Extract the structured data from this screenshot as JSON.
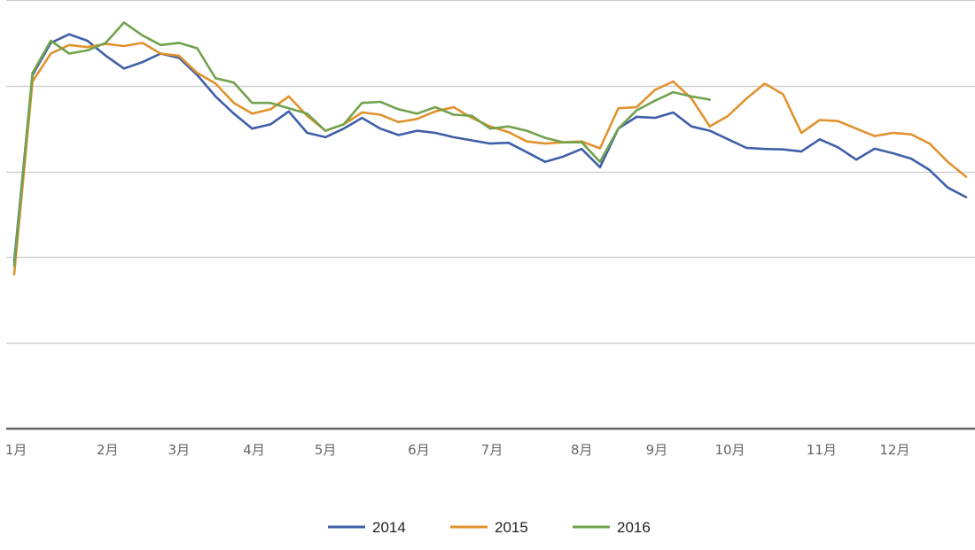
{
  "chart_data": {
    "type": "line",
    "title": "",
    "xlabel": "",
    "ylabel": "",
    "grid": true,
    "legend_position": "bottom",
    "x_ticks": [
      {
        "label": "1月",
        "x": 0.1
      },
      {
        "label": "2月",
        "x": 5.1
      },
      {
        "label": "3月",
        "x": 9.0
      },
      {
        "label": "4月",
        "x": 13.1
      },
      {
        "label": "5月",
        "x": 17.0
      },
      {
        "label": "6月",
        "x": 22.1
      },
      {
        "label": "7月",
        "x": 26.1
      },
      {
        "label": "8月",
        "x": 31.0
      },
      {
        "label": "9月",
        "x": 35.1
      },
      {
        "label": "10月",
        "x": 39.1
      },
      {
        "label": "11月",
        "x": 44.1
      },
      {
        "label": "12月",
        "x": 48.1
      }
    ],
    "x_range": [
      0,
      52
    ],
    "y_range": [
      0,
      200
    ],
    "gridline_values": [
      40,
      80,
      120,
      160,
      200
    ],
    "series": [
      {
        "name": "2014",
        "color": "#3f5fa8",
        "x": [
          0,
          1,
          2,
          3,
          4,
          5,
          6,
          7,
          8,
          9,
          10,
          11,
          12,
          13,
          14,
          15,
          16,
          17,
          18,
          19,
          20,
          21,
          22,
          23,
          24,
          25,
          26,
          27,
          28,
          29,
          30,
          31,
          32,
          33,
          34,
          35,
          36,
          37,
          38,
          39,
          40,
          41,
          42,
          43,
          44,
          45,
          46,
          47,
          48,
          49,
          50,
          51,
          52
        ],
        "values": [
          78,
          165,
          180,
          184,
          181,
          174,
          168,
          171,
          175,
          173,
          165,
          155,
          147,
          140,
          142,
          148,
          138,
          136,
          140,
          145,
          140,
          137,
          139,
          138,
          136,
          134.5,
          133,
          133.4,
          129,
          124.5,
          127,
          130.5,
          122,
          140,
          145.5,
          145,
          147.5,
          141,
          139,
          135,
          131,
          130.5,
          130.3,
          129.3,
          135,
          131.3,
          125.5,
          130.6,
          128.5,
          126,
          120.7,
          112.5,
          108
        ]
      },
      {
        "name": "2015",
        "color": "#e0922e",
        "x": [
          0,
          1,
          2,
          3,
          4,
          5,
          6,
          7,
          8,
          9,
          10,
          11,
          12,
          13,
          14,
          15,
          16,
          17,
          18,
          19,
          20,
          21,
          22,
          23,
          24,
          25,
          26,
          27,
          28,
          29,
          30,
          31,
          32,
          33,
          34,
          35,
          36,
          37,
          38,
          39,
          40,
          41,
          42,
          43,
          44,
          45,
          46,
          47,
          48,
          49,
          50,
          51,
          52
        ],
        "values": [
          72,
          162,
          175,
          179,
          178,
          179.5,
          178.5,
          180,
          175,
          174,
          166,
          161,
          152,
          147,
          149,
          155,
          146,
          139,
          142,
          147.5,
          146.5,
          143,
          144.5,
          148,
          150,
          145,
          141,
          138.4,
          134,
          133,
          133.6,
          134,
          130.8,
          149.5,
          150,
          158,
          162,
          154,
          141,
          146,
          154,
          161,
          156,
          138,
          144,
          143.5,
          140,
          136.5,
          138,
          137.3,
          133,
          124.5,
          117.5
        ]
      },
      {
        "name": "2016",
        "color": "#72a24e",
        "x": [
          0,
          1,
          2,
          3,
          4,
          5,
          6,
          7,
          8,
          9,
          10,
          11,
          12,
          13,
          14,
          15,
          16,
          17,
          18,
          19,
          20,
          21,
          22,
          23,
          24,
          25,
          26,
          27,
          28,
          29,
          30,
          31,
          32,
          33,
          34,
          35,
          36,
          37,
          38
        ],
        "values": [
          76,
          166,
          181,
          175,
          176.5,
          180,
          189.5,
          183.5,
          179,
          180,
          177.5,
          163.5,
          161.5,
          152,
          152,
          149.5,
          147,
          139,
          142,
          152,
          152.5,
          149,
          147,
          150,
          146.5,
          146,
          140,
          141,
          139,
          135.7,
          133.6,
          133.6,
          124.5,
          140,
          148.5,
          153,
          157,
          155,
          153.5
        ]
      }
    ]
  }
}
